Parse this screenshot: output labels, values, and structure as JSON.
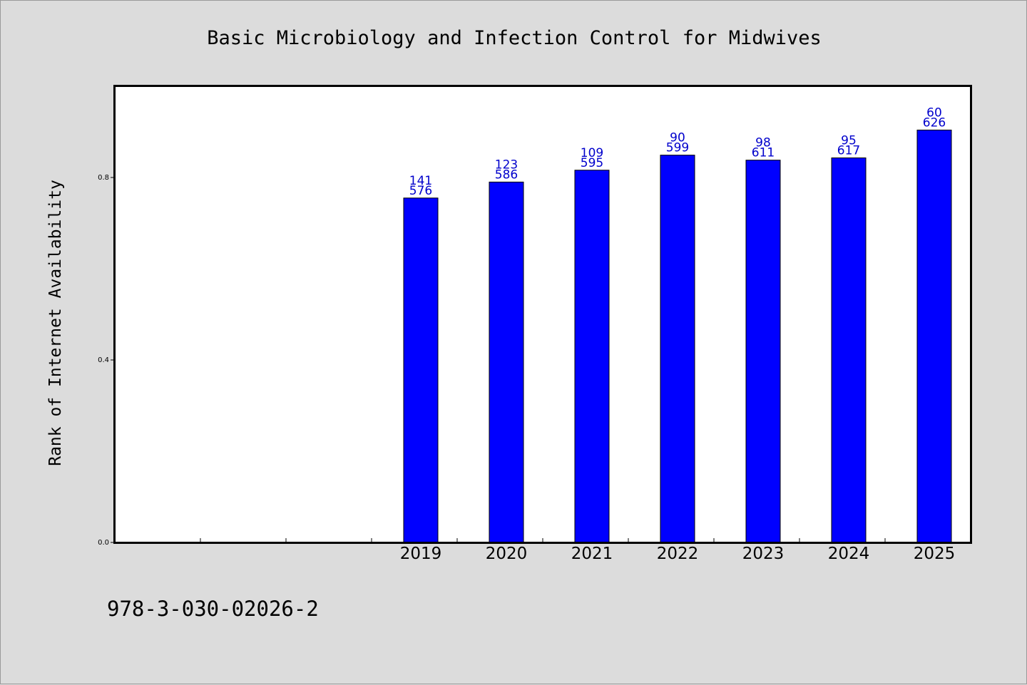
{
  "chart_data": {
    "type": "bar",
    "title": "Basic Microbiology and Infection Control for Midwives",
    "xlabel": "",
    "ylabel": "Rank of Internet Availability",
    "footer_text": "978-3-030-02026-2",
    "categories": [
      "",
      "",
      "",
      "2019",
      "2020",
      "2021",
      "2022",
      "2023",
      "2024",
      "2025"
    ],
    "values": [
      null,
      null,
      null,
      0.755,
      0.79,
      0.816,
      0.849,
      0.838,
      0.843,
      0.904
    ],
    "bar_labels": [
      null,
      null,
      null,
      {
        "top": "141",
        "bottom": "576"
      },
      {
        "top": "123",
        "bottom": "586"
      },
      {
        "top": "109",
        "bottom": "595"
      },
      {
        "top": "90",
        "bottom": "599"
      },
      {
        "top": "98",
        "bottom": "611"
      },
      {
        "top": "95",
        "bottom": "617"
      },
      {
        "top": "60",
        "bottom": "626"
      }
    ],
    "ylim": [
      0,
      1.0
    ],
    "yticks": [
      {
        "value": 0.0,
        "label": "0.0"
      },
      {
        "value": 0.4,
        "label": "0.4"
      },
      {
        "value": 0.8,
        "label": "0.8"
      }
    ],
    "grid": false,
    "colors": {
      "bar_fill": "#0000ff",
      "bar_stroke": "#000000",
      "label_color": "#0000cc",
      "background": "#dcdcdc",
      "plot_background": "#ffffff"
    }
  }
}
